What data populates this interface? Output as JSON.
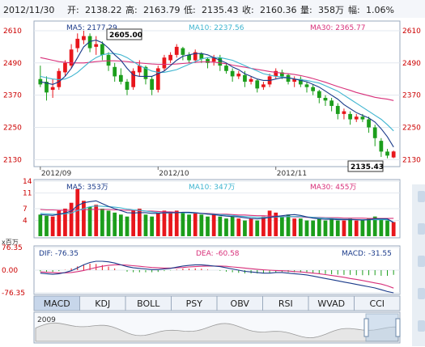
{
  "header": {
    "date": "2012/11/30",
    "open_label": "开:",
    "open": "2138.22",
    "high_label": "高:",
    "high": "2163.79",
    "low_label": "低:",
    "low": "2135.43",
    "close_label": "收:",
    "close": "2160.36",
    "volume_label": "量:",
    "volume": "358万",
    "change_label": "幅:",
    "change": "1.06%"
  },
  "price_legend": {
    "ma5": "MA5: 2177.29",
    "ma10": "MA10: 2237.56",
    "ma30": "MA30: 2365.77"
  },
  "volume_legend": {
    "ma5": "MA5: 353万",
    "ma10": "MA10: 347万",
    "ma30": "MA30: 455万"
  },
  "macd_legend": {
    "dif": "DIF: -76.35",
    "dea": "DEA: -60.58",
    "macd": "MACD: -31.55"
  },
  "callouts": {
    "max": "2605.00",
    "min": "2135.43"
  },
  "unit_label": "x百万",
  "tabs": [
    "MACD",
    "KDJ",
    "BOLL",
    "PSY",
    "OBV",
    "RSI",
    "WVAD",
    "CCI"
  ],
  "overview_year": "2009",
  "colors": {
    "up": "#e8161c",
    "down": "#1c9e1c",
    "ma5": "#1a3a8a",
    "ma10": "#3fb5d0",
    "ma30": "#d8307a",
    "axis_text": "#cc0000"
  },
  "chart_data": [
    {
      "type": "candlestick",
      "yticks": [
        2130,
        2250,
        2370,
        2490,
        2610
      ],
      "ylim": [
        2110,
        2640
      ],
      "xticks": [
        "2012/09",
        "2012/10",
        "2012/11"
      ],
      "candles": [
        [
          2430,
          2480,
          2410,
          2400
        ],
        [
          2420,
          2440,
          2380,
          2350
        ],
        [
          2390,
          2430,
          2400,
          2360
        ],
        [
          2400,
          2470,
          2460,
          2390
        ],
        [
          2455,
          2500,
          2490,
          2440
        ],
        [
          2480,
          2560,
          2540,
          2470
        ],
        [
          2545,
          2600,
          2580,
          2530
        ],
        [
          2575,
          2610,
          2590,
          2560
        ],
        [
          2590,
          2600,
          2545,
          2530
        ],
        [
          2550,
          2590,
          2560,
          2520
        ],
        [
          2560,
          2570,
          2520,
          2500
        ],
        [
          2520,
          2530,
          2480,
          2460
        ],
        [
          2475,
          2490,
          2440,
          2420
        ],
        [
          2445,
          2470,
          2420,
          2410
        ],
        [
          2420,
          2430,
          2390,
          2370
        ],
        [
          2400,
          2470,
          2460,
          2390
        ],
        [
          2455,
          2500,
          2480,
          2440
        ],
        [
          2475,
          2480,
          2430,
          2410
        ],
        [
          2430,
          2440,
          2390,
          2370
        ],
        [
          2390,
          2480,
          2470,
          2380
        ],
        [
          2470,
          2520,
          2510,
          2460
        ],
        [
          2500,
          2530,
          2520,
          2490
        ],
        [
          2520,
          2560,
          2550,
          2510
        ],
        [
          2545,
          2550,
          2520,
          2500
        ],
        [
          2520,
          2530,
          2500,
          2490
        ],
        [
          2500,
          2540,
          2530,
          2490
        ],
        [
          2525,
          2530,
          2505,
          2490
        ],
        [
          2505,
          2510,
          2490,
          2470
        ],
        [
          2495,
          2520,
          2510,
          2480
        ],
        [
          2510,
          2520,
          2480,
          2460
        ],
        [
          2480,
          2490,
          2460,
          2450
        ],
        [
          2460,
          2470,
          2440,
          2420
        ],
        [
          2440,
          2460,
          2450,
          2430
        ],
        [
          2445,
          2460,
          2420,
          2400
        ],
        [
          2420,
          2440,
          2430,
          2410
        ],
        [
          2425,
          2430,
          2395,
          2380
        ],
        [
          2400,
          2420,
          2410,
          2390
        ],
        [
          2410,
          2450,
          2440,
          2400
        ],
        [
          2440,
          2470,
          2460,
          2430
        ],
        [
          2455,
          2465,
          2440,
          2430
        ],
        [
          2445,
          2450,
          2420,
          2410
        ],
        [
          2420,
          2440,
          2430,
          2400
        ],
        [
          2430,
          2440,
          2410,
          2400
        ],
        [
          2410,
          2420,
          2400,
          2380
        ],
        [
          2400,
          2410,
          2385,
          2370
        ],
        [
          2385,
          2390,
          2360,
          2340
        ],
        [
          2360,
          2370,
          2350,
          2330
        ],
        [
          2350,
          2360,
          2330,
          2310
        ],
        [
          2330,
          2340,
          2300,
          2280
        ],
        [
          2300,
          2320,
          2310,
          2280
        ],
        [
          2300,
          2310,
          2280,
          2260
        ],
        [
          2280,
          2300,
          2290,
          2270
        ],
        [
          2290,
          2300,
          2280,
          2270
        ],
        [
          2280,
          2290,
          2250,
          2230
        ],
        [
          2250,
          2260,
          2210,
          2180
        ],
        [
          2200,
          2210,
          2160,
          2140
        ],
        [
          2160,
          2170,
          2145,
          2135
        ],
        [
          2138.22,
          2163.79,
          2160.36,
          2135.43
        ]
      ],
      "ma5": [
        2420,
        2415,
        2410,
        2420,
        2440,
        2470,
        2510,
        2550,
        2570,
        2575,
        2565,
        2545,
        2520,
        2500,
        2470,
        2445,
        2440,
        2440,
        2440,
        2450,
        2460,
        2480,
        2500,
        2515,
        2520,
        2525,
        2525,
        2520,
        2510,
        2500,
        2490,
        2475,
        2465,
        2450,
        2440,
        2430,
        2425,
        2425,
        2430,
        2435,
        2435,
        2430,
        2425,
        2420,
        2410,
        2400,
        2385,
        2370,
        2355,
        2335,
        2320,
        2305,
        2295,
        2285,
        2270,
        2245,
        2215,
        2177
      ],
      "ma10": [
        2440,
        2435,
        2430,
        2428,
        2430,
        2440,
        2455,
        2475,
        2495,
        2510,
        2520,
        2525,
        2525,
        2520,
        2510,
        2495,
        2480,
        2470,
        2460,
        2455,
        2455,
        2460,
        2465,
        2475,
        2485,
        2495,
        2505,
        2510,
        2510,
        2510,
        2505,
        2500,
        2490,
        2480,
        2470,
        2460,
        2450,
        2445,
        2440,
        2438,
        2435,
        2430,
        2428,
        2425,
        2420,
        2415,
        2405,
        2395,
        2385,
        2370,
        2355,
        2340,
        2325,
        2310,
        2295,
        2280,
        2260,
        2237
      ],
      "ma30": [
        2510,
        2505,
        2500,
        2495,
        2492,
        2490,
        2490,
        2490,
        2492,
        2495,
        2497,
        2498,
        2498,
        2497,
        2495,
        2492,
        2490,
        2488,
        2486,
        2485,
        2485,
        2485,
        2486,
        2488,
        2490,
        2492,
        2494,
        2494,
        2493,
        2490,
        2487,
        2482,
        2478,
        2474,
        2470,
        2466,
        2462,
        2458,
        2455,
        2452,
        2450,
        2447,
        2443,
        2438,
        2432,
        2425,
        2418,
        2410,
        2402,
        2395,
        2388,
        2380,
        2374,
        2368,
        2362,
        2358,
        2355,
        2350
      ]
    },
    {
      "type": "bar",
      "title": "volume",
      "yticks": [
        4,
        7,
        11,
        14
      ],
      "ylim": [
        0,
        14
      ],
      "values": [
        5.5,
        5.2,
        5.0,
        6.5,
        7.0,
        8.5,
        12.0,
        9.0,
        7.5,
        8.0,
        7.0,
        6.5,
        6.0,
        5.5,
        5.0,
        6.5,
        7.0,
        5.5,
        5.0,
        6.0,
        6.5,
        6.0,
        6.5,
        6.0,
        5.5,
        6.0,
        5.5,
        5.0,
        5.5,
        5.0,
        4.5,
        5.0,
        4.5,
        4.0,
        4.5,
        4.0,
        5.0,
        6.5,
        6.0,
        5.0,
        5.5,
        4.5,
        4.5,
        4.0,
        4.0,
        4.5,
        4.0,
        4.5,
        4.0,
        4.0,
        4.5,
        4.0,
        4.0,
        4.5,
        5.0,
        4.5,
        4.0,
        3.6
      ],
      "ma5": [
        5.5,
        5.4,
        5.3,
        5.6,
        5.9,
        6.4,
        7.8,
        8.5,
        8.8,
        9.0,
        8.3,
        7.6,
        7.0,
        6.5,
        6.0,
        5.9,
        6.0,
        6.0,
        5.8,
        5.8,
        6.0,
        6.0,
        6.0,
        6.1,
        6.1,
        6.0,
        5.8,
        5.6,
        5.5,
        5.3,
        5.1,
        5.0,
        4.9,
        4.7,
        4.5,
        4.4,
        4.5,
        4.8,
        5.0,
        5.2,
        5.4,
        5.5,
        5.3,
        4.9,
        4.6,
        4.4,
        4.3,
        4.3,
        4.2,
        4.2,
        4.2,
        4.2,
        4.1,
        4.2,
        4.4,
        4.4,
        4.4,
        3.5
      ],
      "ma10": [
        5.8,
        5.7,
        5.6,
        5.6,
        5.7,
        5.9,
        6.5,
        7.0,
        7.5,
        7.7,
        7.6,
        7.5,
        7.4,
        7.2,
        6.9,
        6.7,
        6.6,
        6.4,
        6.2,
        6.0,
        5.9,
        5.9,
        6.0,
        6.0,
        5.9,
        5.9,
        5.8,
        5.7,
        5.6,
        5.5,
        5.4,
        5.3,
        5.1,
        5.0,
        4.9,
        4.8,
        4.8,
        4.8,
        4.9,
        4.9,
        5.0,
        5.0,
        5.0,
        4.9,
        4.8,
        4.7,
        4.6,
        4.5,
        4.4,
        4.3,
        4.3,
        4.2,
        4.2,
        4.2,
        4.2,
        4.2,
        4.2,
        3.5
      ],
      "ma30": [
        6.8,
        6.7,
        6.7,
        6.6,
        6.6,
        6.6,
        6.7,
        6.7,
        6.8,
        6.8,
        6.8,
        6.8,
        6.7,
        6.7,
        6.6,
        6.6,
        6.5,
        6.4,
        6.4,
        6.3,
        6.2,
        6.2,
        6.1,
        6.0,
        6.0,
        5.9,
        5.8,
        5.8,
        5.7,
        5.6,
        5.6,
        5.5,
        5.4,
        5.4,
        5.3,
        5.2,
        5.2,
        5.1,
        5.1,
        5.0,
        5.0,
        4.9,
        4.9,
        4.8,
        4.8,
        4.8,
        4.7,
        4.7,
        4.7,
        4.6,
        4.6,
        4.6,
        4.6,
        4.5,
        4.5,
        4.5,
        4.5,
        4.55
      ]
    },
    {
      "type": "line",
      "title": "MACD",
      "yticks": [
        76.35,
        0.0,
        -76.35
      ],
      "ylim": [
        -76.35,
        76.35
      ],
      "dif": [
        -10,
        -12,
        -14,
        -12,
        -8,
        -2,
        8,
        18,
        26,
        30,
        30,
        28,
        24,
        18,
        12,
        8,
        6,
        4,
        2,
        2,
        4,
        6,
        10,
        14,
        16,
        18,
        18,
        16,
        14,
        12,
        8,
        4,
        0,
        -4,
        -6,
        -8,
        -10,
        -10,
        -8,
        -8,
        -10,
        -12,
        -14,
        -16,
        -20,
        -24,
        -28,
        -32,
        -36,
        -40,
        -44,
        -48,
        -52,
        -56,
        -60,
        -66,
        -72,
        -76.35
      ],
      "dea": [
        -6,
        -7,
        -8,
        -9,
        -9,
        -8,
        -5,
        -1,
        4,
        9,
        13,
        16,
        18,
        18,
        17,
        15,
        13,
        11,
        9,
        8,
        7,
        7,
        8,
        9,
        11,
        12,
        13,
        14,
        14,
        14,
        13,
        11,
        9,
        7,
        5,
        3,
        1,
        0,
        -1,
        -2,
        -3,
        -5,
        -6,
        -8,
        -10,
        -12,
        -15,
        -18,
        -21,
        -24,
        -28,
        -31,
        -35,
        -39,
        -43,
        -47,
        -53,
        -60.58
      ],
      "hist": [
        -8,
        -10,
        -12,
        -6,
        2,
        12,
        26,
        38,
        44,
        42,
        34,
        24,
        12,
        0,
        -10,
        -14,
        -14,
        -14,
        -14,
        -12,
        -6,
        -2,
        4,
        10,
        10,
        12,
        10,
        4,
        0,
        -4,
        -10,
        -14,
        -18,
        -22,
        -22,
        -22,
        -22,
        -20,
        -14,
        -12,
        -14,
        -14,
        -16,
        -16,
        -20,
        -24,
        -26,
        -28,
        -30,
        -32,
        -32,
        -34,
        -34,
        -34,
        -34,
        -38,
        -38,
        -31.55
      ]
    }
  ]
}
